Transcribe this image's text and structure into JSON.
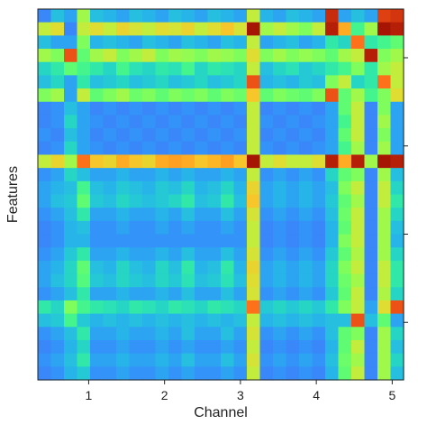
{
  "chart_data": {
    "type": "heatmap",
    "title": "",
    "xlabel": "Channel",
    "ylabel": "Features",
    "x_ticks": [
      "1",
      "2",
      "3",
      "4",
      "5"
    ],
    "x_tick_positions": [
      1,
      2,
      3,
      4,
      5
    ],
    "xlim": [
      0.33,
      5.15
    ],
    "y_tick_count": 4,
    "colormap": "turbo",
    "vmin": 0,
    "vmax": 1,
    "n_rows": 28,
    "n_cols": 28,
    "values": [
      [
        0.1,
        0.2,
        0.15,
        0.5,
        0.2,
        0.18,
        0.15,
        0.2,
        0.18,
        0.15,
        0.2,
        0.18,
        0.15,
        0.2,
        0.18,
        0.15,
        0.55,
        0.18,
        0.15,
        0.2,
        0.18,
        0.15,
        0.92,
        0.15,
        0.2,
        0.15,
        0.88,
        0.9
      ],
      [
        0.55,
        0.6,
        0.1,
        0.55,
        0.6,
        0.55,
        0.62,
        0.58,
        0.55,
        0.6,
        0.58,
        0.62,
        0.55,
        0.6,
        0.65,
        0.58,
        0.98,
        0.5,
        0.55,
        0.5,
        0.45,
        0.55,
        0.95,
        0.7,
        0.35,
        0.5,
        0.98,
        0.95
      ],
      [
        0.2,
        0.15,
        0.15,
        0.45,
        0.18,
        0.2,
        0.18,
        0.15,
        0.2,
        0.18,
        0.15,
        0.2,
        0.18,
        0.15,
        0.2,
        0.18,
        0.55,
        0.15,
        0.18,
        0.2,
        0.15,
        0.18,
        0.3,
        0.25,
        0.8,
        0.3,
        0.35,
        0.4
      ],
      [
        0.5,
        0.45,
        0.85,
        0.4,
        0.5,
        0.55,
        0.45,
        0.5,
        0.55,
        0.45,
        0.5,
        0.48,
        0.45,
        0.5,
        0.48,
        0.45,
        0.6,
        0.45,
        0.5,
        0.45,
        0.48,
        0.45,
        0.4,
        0.5,
        0.55,
        0.95,
        0.45,
        0.5
      ],
      [
        0.25,
        0.3,
        0.4,
        0.35,
        0.3,
        0.25,
        0.35,
        0.28,
        0.25,
        0.3,
        0.28,
        0.35,
        0.25,
        0.3,
        0.28,
        0.25,
        0.55,
        0.2,
        0.25,
        0.28,
        0.22,
        0.25,
        0.3,
        0.35,
        0.45,
        0.3,
        0.5,
        0.55
      ],
      [
        0.2,
        0.25,
        0.15,
        0.3,
        0.2,
        0.22,
        0.25,
        0.2,
        0.22,
        0.25,
        0.2,
        0.22,
        0.25,
        0.2,
        0.22,
        0.25,
        0.85,
        0.18,
        0.2,
        0.18,
        0.22,
        0.2,
        0.45,
        0.55,
        0.25,
        0.3,
        0.8,
        0.55
      ],
      [
        0.45,
        0.5,
        0.15,
        0.55,
        0.4,
        0.45,
        0.5,
        0.42,
        0.45,
        0.4,
        0.45,
        0.42,
        0.45,
        0.4,
        0.45,
        0.42,
        0.65,
        0.4,
        0.45,
        0.42,
        0.4,
        0.45,
        0.85,
        0.4,
        0.5,
        0.35,
        0.45,
        0.6
      ],
      [
        0.1,
        0.12,
        0.2,
        0.15,
        0.1,
        0.12,
        0.1,
        0.12,
        0.1,
        0.12,
        0.1,
        0.12,
        0.1,
        0.12,
        0.1,
        0.12,
        0.55,
        0.1,
        0.12,
        0.1,
        0.12,
        0.1,
        0.15,
        0.4,
        0.55,
        0.1,
        0.45,
        0.15
      ],
      [
        0.1,
        0.12,
        0.25,
        0.15,
        0.12,
        0.1,
        0.12,
        0.1,
        0.12,
        0.1,
        0.12,
        0.1,
        0.12,
        0.1,
        0.12,
        0.1,
        0.55,
        0.12,
        0.1,
        0.12,
        0.1,
        0.12,
        0.15,
        0.35,
        0.55,
        0.1,
        0.5,
        0.15
      ],
      [
        0.12,
        0.1,
        0.2,
        0.15,
        0.1,
        0.12,
        0.1,
        0.12,
        0.1,
        0.12,
        0.1,
        0.12,
        0.1,
        0.12,
        0.1,
        0.12,
        0.55,
        0.1,
        0.12,
        0.1,
        0.12,
        0.1,
        0.15,
        0.4,
        0.55,
        0.1,
        0.45,
        0.15
      ],
      [
        0.1,
        0.12,
        0.25,
        0.15,
        0.12,
        0.1,
        0.12,
        0.1,
        0.12,
        0.1,
        0.12,
        0.1,
        0.12,
        0.1,
        0.12,
        0.1,
        0.55,
        0.12,
        0.1,
        0.12,
        0.1,
        0.12,
        0.15,
        0.35,
        0.5,
        0.1,
        0.5,
        0.15
      ],
      [
        0.55,
        0.62,
        0.5,
        0.8,
        0.65,
        0.62,
        0.7,
        0.65,
        0.62,
        0.7,
        0.72,
        0.7,
        0.65,
        0.68,
        0.72,
        0.65,
        0.98,
        0.55,
        0.6,
        0.55,
        0.55,
        0.6,
        0.95,
        0.7,
        0.95,
        0.5,
        0.98,
        0.95
      ],
      [
        0.12,
        0.15,
        0.25,
        0.2,
        0.15,
        0.15,
        0.18,
        0.15,
        0.15,
        0.18,
        0.15,
        0.18,
        0.15,
        0.15,
        0.18,
        0.15,
        0.55,
        0.12,
        0.15,
        0.12,
        0.15,
        0.12,
        0.25,
        0.4,
        0.45,
        0.1,
        0.5,
        0.2
      ],
      [
        0.15,
        0.18,
        0.2,
        0.35,
        0.2,
        0.18,
        0.22,
        0.2,
        0.18,
        0.22,
        0.2,
        0.25,
        0.18,
        0.2,
        0.25,
        0.18,
        0.62,
        0.15,
        0.18,
        0.15,
        0.18,
        0.15,
        0.2,
        0.45,
        0.55,
        0.1,
        0.55,
        0.25
      ],
      [
        0.15,
        0.2,
        0.22,
        0.4,
        0.22,
        0.2,
        0.25,
        0.22,
        0.2,
        0.22,
        0.25,
        0.3,
        0.2,
        0.22,
        0.3,
        0.2,
        0.65,
        0.15,
        0.18,
        0.15,
        0.18,
        0.15,
        0.22,
        0.4,
        0.5,
        0.1,
        0.55,
        0.3
      ],
      [
        0.12,
        0.15,
        0.2,
        0.3,
        0.15,
        0.15,
        0.18,
        0.15,
        0.15,
        0.18,
        0.15,
        0.2,
        0.15,
        0.15,
        0.2,
        0.15,
        0.58,
        0.12,
        0.15,
        0.12,
        0.15,
        0.12,
        0.2,
        0.42,
        0.55,
        0.1,
        0.5,
        0.25
      ],
      [
        0.1,
        0.12,
        0.18,
        0.2,
        0.12,
        0.12,
        0.15,
        0.12,
        0.12,
        0.15,
        0.12,
        0.15,
        0.12,
        0.12,
        0.15,
        0.12,
        0.55,
        0.1,
        0.12,
        0.1,
        0.12,
        0.1,
        0.18,
        0.4,
        0.55,
        0.1,
        0.5,
        0.2
      ],
      [
        0.1,
        0.12,
        0.18,
        0.18,
        0.12,
        0.12,
        0.12,
        0.12,
        0.12,
        0.12,
        0.12,
        0.12,
        0.12,
        0.12,
        0.12,
        0.12,
        0.55,
        0.1,
        0.12,
        0.1,
        0.12,
        0.1,
        0.18,
        0.45,
        0.55,
        0.1,
        0.5,
        0.18
      ],
      [
        0.12,
        0.15,
        0.22,
        0.3,
        0.15,
        0.15,
        0.18,
        0.15,
        0.15,
        0.18,
        0.15,
        0.2,
        0.15,
        0.15,
        0.2,
        0.15,
        0.58,
        0.12,
        0.15,
        0.12,
        0.15,
        0.12,
        0.22,
        0.4,
        0.52,
        0.1,
        0.5,
        0.25
      ],
      [
        0.15,
        0.18,
        0.25,
        0.4,
        0.2,
        0.18,
        0.25,
        0.2,
        0.18,
        0.25,
        0.2,
        0.3,
        0.18,
        0.2,
        0.3,
        0.18,
        0.62,
        0.15,
        0.18,
        0.15,
        0.18,
        0.15,
        0.25,
        0.45,
        0.55,
        0.1,
        0.55,
        0.3
      ],
      [
        0.15,
        0.2,
        0.25,
        0.38,
        0.22,
        0.2,
        0.25,
        0.22,
        0.2,
        0.25,
        0.22,
        0.28,
        0.2,
        0.22,
        0.28,
        0.2,
        0.6,
        0.15,
        0.18,
        0.15,
        0.18,
        0.15,
        0.25,
        0.42,
        0.5,
        0.1,
        0.55,
        0.3
      ],
      [
        0.12,
        0.15,
        0.2,
        0.3,
        0.15,
        0.15,
        0.18,
        0.15,
        0.15,
        0.18,
        0.15,
        0.2,
        0.15,
        0.15,
        0.2,
        0.15,
        0.58,
        0.12,
        0.15,
        0.12,
        0.15,
        0.12,
        0.22,
        0.4,
        0.55,
        0.1,
        0.52,
        0.25
      ],
      [
        0.3,
        0.25,
        0.45,
        0.35,
        0.3,
        0.28,
        0.25,
        0.3,
        0.28,
        0.25,
        0.3,
        0.28,
        0.25,
        0.3,
        0.28,
        0.25,
        0.8,
        0.22,
        0.25,
        0.22,
        0.25,
        0.22,
        0.3,
        0.45,
        0.55,
        0.15,
        0.6,
        0.85
      ],
      [
        0.2,
        0.22,
        0.35,
        0.22,
        0.18,
        0.2,
        0.18,
        0.2,
        0.18,
        0.2,
        0.18,
        0.2,
        0.18,
        0.2,
        0.18,
        0.2,
        0.55,
        0.18,
        0.2,
        0.18,
        0.2,
        0.18,
        0.2,
        0.2,
        0.85,
        0.2,
        0.4,
        0.15
      ],
      [
        0.12,
        0.15,
        0.2,
        0.3,
        0.15,
        0.15,
        0.18,
        0.15,
        0.15,
        0.18,
        0.15,
        0.2,
        0.15,
        0.15,
        0.2,
        0.15,
        0.58,
        0.12,
        0.15,
        0.12,
        0.15,
        0.12,
        0.2,
        0.4,
        0.45,
        0.1,
        0.5,
        0.25
      ],
      [
        0.1,
        0.12,
        0.18,
        0.25,
        0.12,
        0.12,
        0.15,
        0.12,
        0.12,
        0.15,
        0.12,
        0.15,
        0.12,
        0.12,
        0.15,
        0.12,
        0.55,
        0.1,
        0.12,
        0.1,
        0.12,
        0.1,
        0.18,
        0.4,
        0.55,
        0.1,
        0.5,
        0.2
      ],
      [
        0.12,
        0.15,
        0.2,
        0.3,
        0.15,
        0.15,
        0.18,
        0.15,
        0.15,
        0.18,
        0.15,
        0.2,
        0.15,
        0.15,
        0.2,
        0.15,
        0.58,
        0.12,
        0.15,
        0.12,
        0.15,
        0.12,
        0.2,
        0.42,
        0.5,
        0.1,
        0.5,
        0.25
      ],
      [
        0.1,
        0.12,
        0.18,
        0.22,
        0.12,
        0.12,
        0.15,
        0.12,
        0.12,
        0.15,
        0.12,
        0.15,
        0.12,
        0.12,
        0.15,
        0.12,
        0.55,
        0.1,
        0.12,
        0.1,
        0.12,
        0.1,
        0.18,
        0.4,
        0.55,
        0.1,
        0.5,
        0.2
      ]
    ]
  }
}
